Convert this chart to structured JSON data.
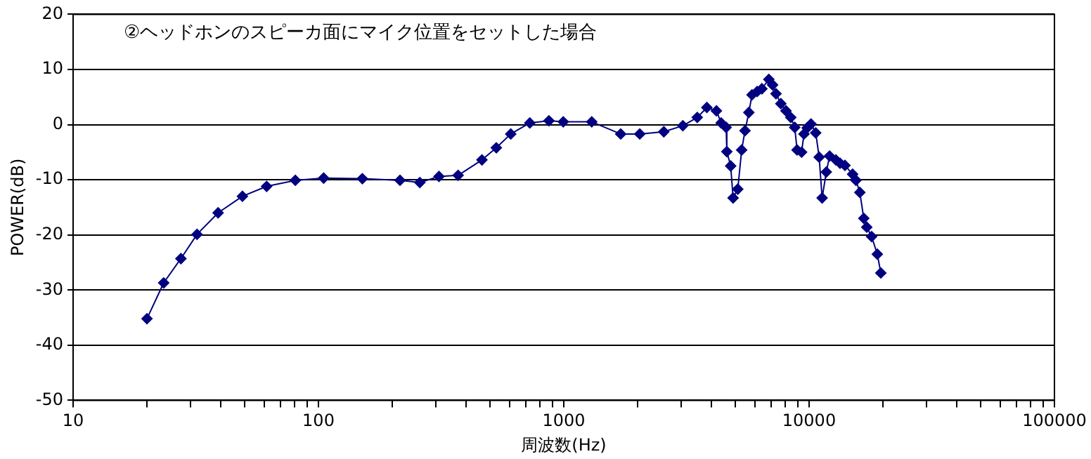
{
  "chart_data": {
    "type": "line",
    "title": "②ヘッドホンのスピーカ面にマイク位置をセットした場合",
    "xlabel": "周波数(Hz)",
    "ylabel": "POWER(dB)",
    "log": "x",
    "grid": "y",
    "marker": "diamond",
    "line_style": "solid",
    "xlim": [
      10,
      100000
    ],
    "xticks": [
      10,
      {
        "value": 20,
        "label": null
      },
      {
        "value": 30,
        "label": null
      },
      {
        "value": 40,
        "label": null
      },
      {
        "value": 50,
        "label": null
      },
      {
        "value": 60,
        "label": null
      },
      {
        "value": 70,
        "label": null
      },
      {
        "value": 80,
        "label": null
      },
      {
        "value": 90,
        "label": null
      },
      100,
      {
        "value": 200,
        "label": null
      },
      {
        "value": 300,
        "label": null
      },
      {
        "value": 400,
        "label": null
      },
      {
        "value": 500,
        "label": null
      },
      {
        "value": 600,
        "label": null
      },
      {
        "value": 700,
        "label": null
      },
      {
        "value": 800,
        "label": null
      },
      {
        "value": 900,
        "label": null
      },
      1000,
      {
        "value": 2000,
        "label": null
      },
      {
        "value": 3000,
        "label": null
      },
      {
        "value": 4000,
        "label": null
      },
      {
        "value": 5000,
        "label": null
      },
      {
        "value": 6000,
        "label": null
      },
      {
        "value": 7000,
        "label": null
      },
      {
        "value": 8000,
        "label": null
      },
      {
        "value": 9000,
        "label": null
      },
      10000,
      {
        "value": 20000,
        "label": null
      },
      {
        "value": 30000,
        "label": null
      },
      {
        "value": 40000,
        "label": null
      },
      {
        "value": 50000,
        "label": null
      },
      {
        "value": 60000,
        "label": null
      },
      {
        "value": 70000,
        "label": null
      },
      {
        "value": 80000,
        "label": null
      },
      {
        "value": 90000,
        "label": null
      },
      100000
    ],
    "ylim": [
      -50,
      20
    ],
    "yticks": [
      -50,
      -40,
      -30,
      -20,
      -10,
      0,
      10,
      20
    ],
    "series": [
      {
        "color": "#000080",
        "x": [
          20,
          23.4,
          27.5,
          32,
          39,
          49,
          61.5,
          80.5,
          105,
          151,
          215,
          259,
          310,
          371,
          464,
          531,
          608,
          727,
          870,
          995,
          1300,
          1706,
          2040,
          2557,
          3057,
          3500,
          3830,
          4190,
          4380,
          4590,
          4620,
          4790,
          4900,
          5120,
          5310,
          5480,
          5680,
          5850,
          6140,
          6420,
          6850,
          7100,
          7330,
          7670,
          8050,
          8420,
          8740,
          8930,
          9320,
          9530,
          9820,
          10180,
          10640,
          10990,
          11300,
          11750,
          12120,
          12850,
          13370,
          14000,
          15040,
          15520,
          16100,
          16700,
          17180,
          17980,
          18970,
          19600
        ],
        "values": [
          -35.2,
          -28.7,
          -24.3,
          -19.9,
          -16,
          -13,
          -11.2,
          -10.1,
          -9.7,
          -9.8,
          -10.1,
          -10.5,
          -9.4,
          -9.2,
          -6.4,
          -4.2,
          -1.7,
          0.3,
          0.7,
          0.5,
          0.5,
          -1.7,
          -1.7,
          -1.3,
          -0.2,
          1.3,
          3.1,
          2.5,
          0.3,
          -0.5,
          -4.9,
          -7.5,
          -13.3,
          -11.7,
          -4.6,
          -1.1,
          2.2,
          5.4,
          6,
          6.5,
          8.2,
          7.2,
          5.6,
          3.8,
          2.5,
          1.3,
          -0.5,
          -4.6,
          -5,
          -1.7,
          -0.6,
          0.1,
          -1.5,
          -5.9,
          -13.3,
          -8.6,
          -5.7,
          -6.4,
          -7,
          -7.4,
          -9,
          -10.1,
          -12.3,
          -17,
          -18.6,
          -20.3,
          -23.5,
          -26.9
        ]
      }
    ]
  }
}
